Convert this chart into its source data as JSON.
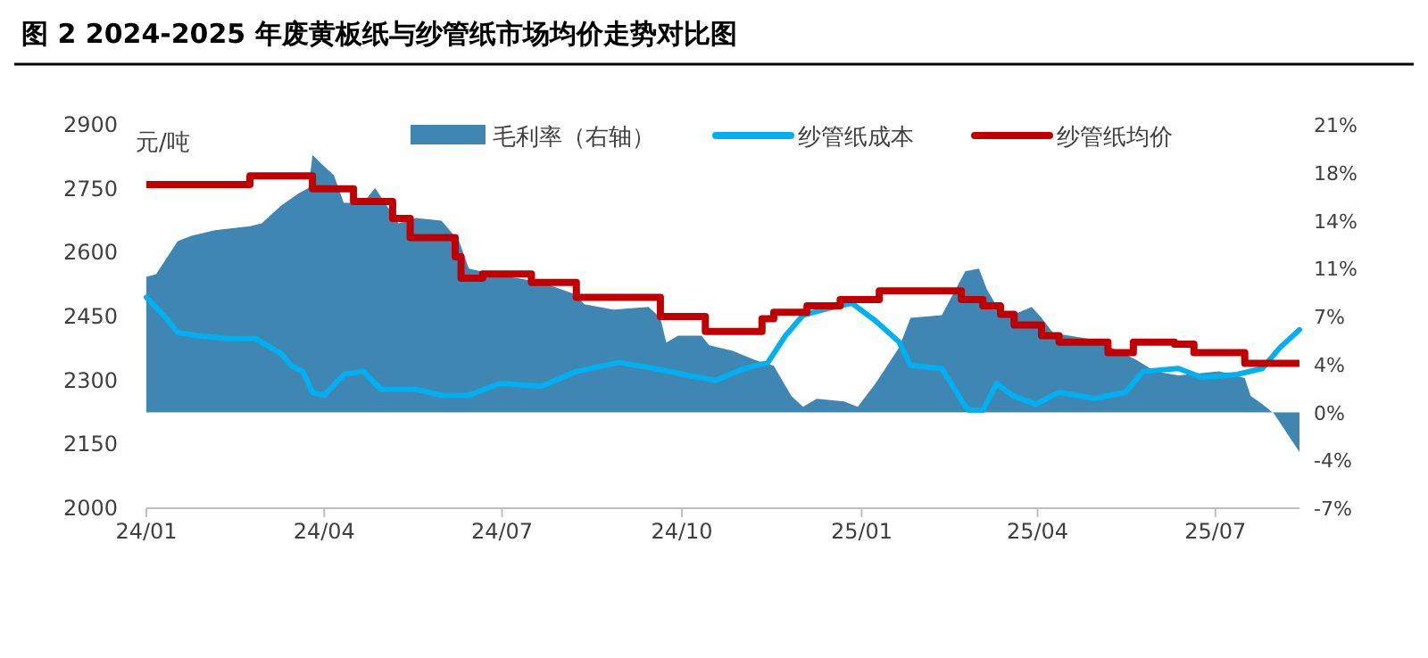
{
  "chart_data": {
    "type": "line",
    "title": "图 2 2024-2025 年废黄板纸与纱管纸市场均价走势对比图",
    "ylabel": "元/吨",
    "legend": "top",
    "grid": false,
    "xlim": [
      "2024-01-01",
      "2025-08-13"
    ],
    "xticks": [
      {
        "value": "2024-01-01",
        "label": "24/01"
      },
      {
        "value": "2024-04-01",
        "label": "24/04"
      },
      {
        "value": "2024-07-01",
        "label": "24/07"
      },
      {
        "value": "2024-10-01",
        "label": "24/10"
      },
      {
        "value": "2025-01-01",
        "label": "25/01"
      },
      {
        "value": "2025-04-01",
        "label": "25/04"
      },
      {
        "value": "2025-07-01",
        "label": "25/07"
      }
    ],
    "ylim": [
      2000,
      2900
    ],
    "yticks": [
      2000,
      2150,
      2300,
      2450,
      2600,
      2750,
      2900
    ],
    "y2lim": [
      -7,
      21
    ],
    "y2ticks": [
      {
        "value": -7,
        "label": "-7%"
      },
      {
        "value": -3.5,
        "label": "-4%"
      },
      {
        "value": 0,
        "label": "0%"
      },
      {
        "value": 3.5,
        "label": "4%"
      },
      {
        "value": 7,
        "label": "7%"
      },
      {
        "value": 10.5,
        "label": "11%"
      },
      {
        "value": 14,
        "label": "14%"
      },
      {
        "value": 17.5,
        "label": "18%"
      },
      {
        "value": 21,
        "label": "21%"
      }
    ],
    "series": [
      {
        "name": "毛利率（右轴）",
        "type": "area",
        "axis": "y2",
        "color": "#3f87b2",
        "x": [
          "2024-01-01",
          "2024-01-06",
          "2024-01-17",
          "2024-01-24",
          "2024-02-05",
          "2024-02-23",
          "2024-02-29",
          "2024-03-10",
          "2024-03-19",
          "2024-03-24",
          "2024-03-26",
          "2024-03-31",
          "2024-04-06",
          "2024-04-11",
          "2024-04-21",
          "2024-04-27",
          "2024-05-09",
          "2024-05-18",
          "2024-05-31",
          "2024-06-09",
          "2024-06-14",
          "2024-06-27",
          "2024-07-21",
          "2024-08-08",
          "2024-08-12",
          "2024-08-27",
          "2024-09-14",
          "2024-09-20",
          "2024-09-23",
          "2024-09-29",
          "2024-10-11",
          "2024-10-15",
          "2024-10-27",
          "2024-11-08",
          "2024-11-17",
          "2024-11-26",
          "2024-12-02",
          "2024-12-09",
          "2024-12-23",
          "2024-12-30",
          "2025-01-08",
          "2025-01-20",
          "2025-01-26",
          "2025-02-11",
          "2025-02-20",
          "2025-02-23",
          "2025-03-02",
          "2025-03-06",
          "2025-03-13",
          "2025-03-19",
          "2025-03-29",
          "2025-04-03",
          "2025-04-09",
          "2025-04-30",
          "2025-05-09",
          "2025-05-22",
          "2025-05-31",
          "2025-06-12",
          "2025-07-03",
          "2025-07-16",
          "2025-07-19",
          "2025-07-25",
          "2025-07-31",
          "2025-08-06",
          "2025-08-13"
        ],
        "values": [
          9.9,
          10.1,
          12.5,
          12.9,
          13.3,
          13.6,
          13.8,
          15.1,
          16.0,
          16.4,
          18.8,
          18.1,
          17.3,
          15.3,
          15.3,
          16.4,
          13.8,
          14.2,
          14.0,
          12.5,
          10.5,
          10.1,
          9.5,
          8.6,
          7.9,
          7.5,
          7.7,
          6.9,
          5.1,
          5.6,
          5.6,
          4.9,
          4.5,
          3.8,
          3.4,
          1.2,
          0.4,
          1.0,
          0.8,
          0.4,
          2.1,
          4.7,
          6.9,
          7.1,
          9.5,
          10.3,
          10.5,
          9.0,
          7.3,
          7.1,
          7.7,
          6.9,
          5.8,
          5.3,
          4.7,
          3.8,
          3.0,
          2.7,
          3.0,
          2.5,
          1.2,
          0.6,
          -0.1,
          -1.4,
          -2.9
        ]
      },
      {
        "name": "纱管纸成本",
        "type": "line",
        "color": "#00b0f0",
        "x": [
          "2024-01-01",
          "2024-01-11",
          "2024-01-17",
          "2024-01-27",
          "2024-02-11",
          "2024-02-26",
          "2024-03-10",
          "2024-03-15",
          "2024-03-21",
          "2024-03-26",
          "2024-04-01",
          "2024-04-11",
          "2024-04-21",
          "2024-04-30",
          "2024-05-18",
          "2024-05-31",
          "2024-06-14",
          "2024-06-30",
          "2024-07-21",
          "2024-08-08",
          "2024-08-30",
          "2024-09-17",
          "2024-10-02",
          "2024-10-18",
          "2024-11-02",
          "2024-11-14",
          "2024-11-23",
          "2024-12-02",
          "2024-12-14",
          "2024-12-27",
          "2025-01-08",
          "2025-01-20",
          "2025-01-26",
          "2025-02-11",
          "2025-02-23",
          "2025-02-25",
          "2025-03-04",
          "2025-03-11",
          "2025-03-19",
          "2025-03-31",
          "2025-04-12",
          "2025-04-30",
          "2025-05-16",
          "2025-05-25",
          "2025-06-12",
          "2025-06-24",
          "2025-07-12",
          "2025-07-25",
          "2025-08-03",
          "2025-08-13"
        ],
        "values": [
          2495,
          2447,
          2412,
          2405,
          2398,
          2398,
          2363,
          2335,
          2321,
          2272,
          2265,
          2314,
          2321,
          2279,
          2279,
          2265,
          2265,
          2293,
          2286,
          2321,
          2342,
          2328,
          2314,
          2300,
          2328,
          2342,
          2405,
          2453,
          2468,
          2481,
          2440,
          2391,
          2335,
          2328,
          2239,
          2230,
          2230,
          2293,
          2265,
          2244,
          2272,
          2258,
          2272,
          2321,
          2328,
          2307,
          2314,
          2328,
          2377,
          2419
        ]
      },
      {
        "name": "纱管纸均价",
        "type": "step",
        "color": "#c00000",
        "x": [
          "2024-01-01",
          "2024-02-23",
          "2024-03-26",
          "2024-04-16",
          "2024-05-06",
          "2024-05-15",
          "2024-06-07",
          "2024-06-10",
          "2024-06-21",
          "2024-07-16",
          "2024-08-08",
          "2024-09-20",
          "2024-10-13",
          "2024-11-11",
          "2024-11-17",
          "2024-12-04",
          "2024-12-21",
          "2025-01-10",
          "2025-02-21",
          "2025-03-04",
          "2025-03-13",
          "2025-03-20",
          "2025-04-03",
          "2025-04-12",
          "2025-05-07",
          "2025-05-20",
          "2025-06-10",
          "2025-06-20",
          "2025-07-16",
          "2025-08-13"
        ],
        "values": [
          2760,
          2780,
          2750,
          2720,
          2680,
          2635,
          2590,
          2540,
          2550,
          2530,
          2495,
          2450,
          2415,
          2445,
          2460,
          2475,
          2490,
          2510,
          2490,
          2475,
          2455,
          2430,
          2405,
          2390,
          2365,
          2390,
          2385,
          2365,
          2340,
          2340
        ]
      }
    ]
  }
}
